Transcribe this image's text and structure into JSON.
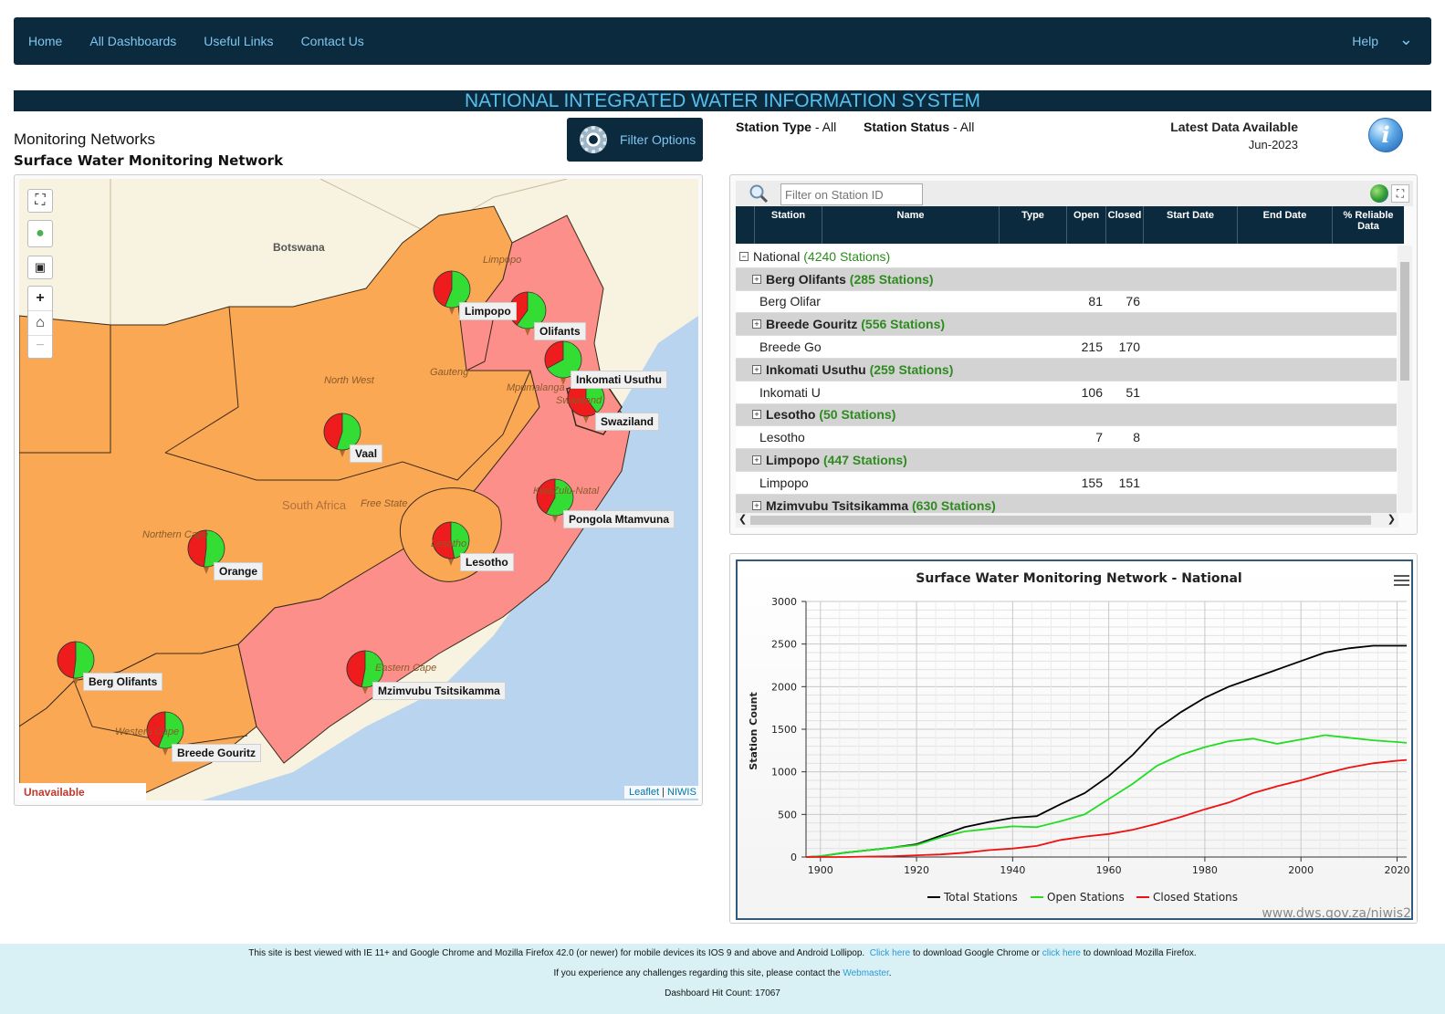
{
  "nav": {
    "home": "Home",
    "dashboards": "All Dashboards",
    "links": "Useful Links",
    "contact": "Contact Us",
    "help": "Help"
  },
  "banner": "NATIONAL INTEGRATED WATER INFORMATION SYSTEM",
  "monitoring": {
    "title": "Monitoring Networks",
    "subtitle": "Surface Water Monitoring Network",
    "filter_button": "Filter Options"
  },
  "station_filters": {
    "type_label": "Station Type",
    "type_value": " - All",
    "status_label": "Station Status",
    "status_value": " - All"
  },
  "latest": {
    "label": "Latest Data Available",
    "value": "Jun-2023"
  },
  "map": {
    "country_labels": [
      "Botswana",
      "Limpopo",
      "North West",
      "Gauteng",
      "Mpumalanga",
      "Swaziland",
      "South Africa",
      "Free State",
      "Northern Cape",
      "KwaZulu-Natal",
      "Lesotho",
      "Eastern Cape",
      "Western Cape"
    ],
    "pies": [
      {
        "label": "Limpopo",
        "closed_frac": 0.44
      },
      {
        "label": "Olifants",
        "closed_frac": 0.4
      },
      {
        "label": "Inkomati Usuthu",
        "closed_frac": 0.33
      },
      {
        "label": "Swaziland",
        "closed_frac": 0.6
      },
      {
        "label": "Vaal",
        "closed_frac": 0.45
      },
      {
        "label": "Pongola Mtamvuna",
        "closed_frac": 0.42
      },
      {
        "label": "Orange",
        "closed_frac": 0.48
      },
      {
        "label": "Lesotho",
        "closed_frac": 0.53
      },
      {
        "label": "Berg Olifants",
        "closed_frac": 0.48
      },
      {
        "label": "Mzimvubu Tsitsikamma",
        "closed_frac": 0.47
      },
      {
        "label": "Breede Gouritz",
        "closed_frac": 0.44
      }
    ],
    "unavailable": "Unavailable",
    "attribution_leaflet": "Leaflet",
    "attribution_sep": " | ",
    "attribution_niwis": "NIWIS"
  },
  "table": {
    "search_placeholder": "Filter on Station ID",
    "headers": [
      "Station",
      "Name",
      "Type",
      "Open",
      "Closed",
      "Start Date",
      "End Date",
      "% Reliable Data"
    ],
    "national": {
      "name": "National",
      "count": "(4240 Stations)"
    },
    "groups": [
      {
        "name": "Berg Olifants",
        "count": "(285 Stations)",
        "row_name": "Berg Olifar",
        "open": "81",
        "closed": "76"
      },
      {
        "name": "Breede Gouritz",
        "count": "(556 Stations)",
        "row_name": "Breede Go",
        "open": "215",
        "closed": "170"
      },
      {
        "name": "Inkomati Usuthu",
        "count": "(259 Stations)",
        "row_name": "Inkomati U",
        "open": "106",
        "closed": "51"
      },
      {
        "name": "Lesotho",
        "count": "(50 Stations)",
        "row_name": "Lesotho",
        "open": "7",
        "closed": "8"
      },
      {
        "name": "Limpopo",
        "count": "(447 Stations)",
        "row_name": "Limpopo",
        "open": "155",
        "closed": "151"
      },
      {
        "name": "Mzimvubu Tsitsikamma",
        "count": "(630 Stations)"
      }
    ]
  },
  "chart_data": {
    "type": "line",
    "title": "Surface Water Monitoring Network - National",
    "xlabel": "",
    "ylabel": "Station Count",
    "xlim": [
      1897,
      2022
    ],
    "ylim": [
      0,
      3000
    ],
    "xticks": [
      1900,
      1920,
      1940,
      1960,
      1980,
      2000,
      2020
    ],
    "yticks": [
      0,
      500,
      1000,
      1500,
      2000,
      2500,
      3000
    ],
    "x": [
      1897,
      1900,
      1905,
      1910,
      1915,
      1920,
      1925,
      1930,
      1935,
      1940,
      1945,
      1950,
      1955,
      1960,
      1965,
      1970,
      1975,
      1980,
      1985,
      1990,
      1995,
      2000,
      2005,
      2010,
      2015,
      2020,
      2022
    ],
    "series": [
      {
        "name": "Total Stations",
        "color": "#000000",
        "values": [
          0,
          10,
          50,
          80,
          110,
          150,
          250,
          350,
          410,
          460,
          480,
          620,
          750,
          950,
          1200,
          1500,
          1700,
          1870,
          2000,
          2100,
          2200,
          2300,
          2400,
          2450,
          2480,
          2480,
          2480
        ]
      },
      {
        "name": "Open Stations",
        "color": "#22dd22",
        "values": [
          0,
          10,
          50,
          80,
          110,
          140,
          230,
          300,
          330,
          360,
          350,
          420,
          500,
          680,
          860,
          1070,
          1200,
          1290,
          1360,
          1390,
          1330,
          1380,
          1430,
          1400,
          1370,
          1350,
          1340
        ]
      },
      {
        "name": "Closed Stations",
        "color": "#ee1111",
        "values": [
          0,
          0,
          0,
          5,
          10,
          20,
          30,
          50,
          80,
          100,
          130,
          200,
          240,
          270,
          320,
          390,
          470,
          560,
          640,
          750,
          830,
          900,
          980,
          1050,
          1100,
          1130,
          1140
        ]
      }
    ],
    "watermark": "www.dws.gov.za/niwis2"
  },
  "footer": {
    "line1_a": "This site is best viewed with IE 11+ and Google Chrome and Mozilla Firefox 42.0 (or newer) for mobile devices its IOS 9 and above and Android Lollipop.",
    "link1": "Click here",
    "line1_b": "to download Google Chrome or",
    "link2": "click here",
    "line1_c": "to download Mozilla Firefox.",
    "line2_a": "If you experience any challenges regarding this site, please contact the",
    "link3": "Webmaster",
    "line2_b": ".",
    "line3": "Dashboard Hit Count: 17067"
  }
}
